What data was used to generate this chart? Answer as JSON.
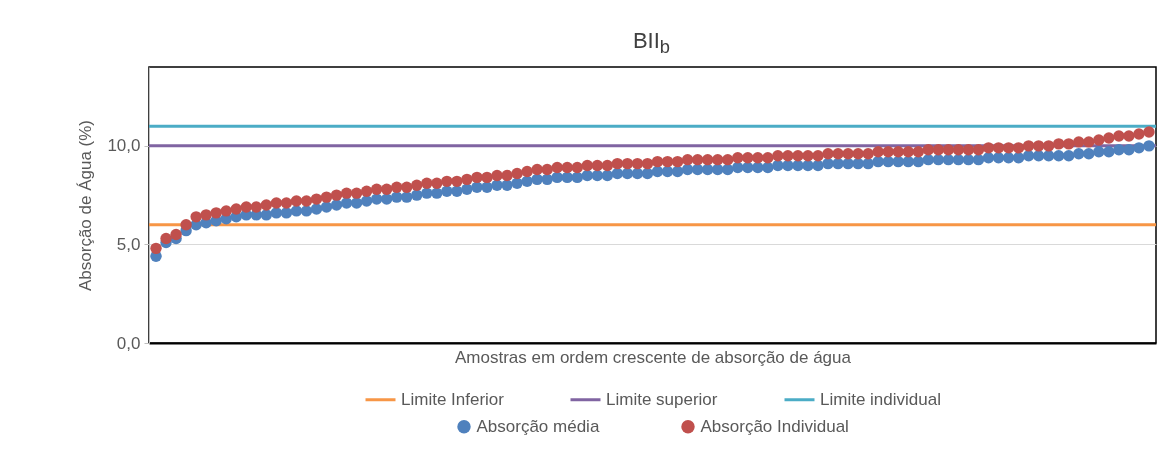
{
  "chart_data": {
    "type": "scatter",
    "title": "BII$_{b}$",
    "xlabel": "Amostras em ordem crescente de absorção de água",
    "ylabel": "Absorção de Água (%)",
    "categories": [
      null,
      null,
      null,
      null,
      null,
      null,
      null,
      null,
      null,
      null,
      null,
      null,
      null,
      null,
      null,
      null,
      null,
      null,
      null,
      null,
      null,
      null,
      null,
      null,
      null,
      null,
      null,
      null,
      null,
      null,
      null,
      null,
      null,
      null,
      null,
      null,
      null,
      null,
      null,
      null,
      null,
      null,
      null,
      null,
      null,
      null,
      null,
      null,
      null,
      null,
      null,
      null,
      null,
      null,
      null,
      null,
      null,
      null,
      null,
      null,
      null,
      null,
      null,
      null,
      null,
      null,
      null,
      null,
      null,
      null,
      null,
      null,
      null,
      null,
      null,
      null,
      null,
      null,
      null,
      null,
      null,
      null,
      null,
      null,
      null,
      null,
      null,
      null,
      null,
      null,
      null,
      null,
      null,
      null,
      null,
      null,
      null,
      null,
      null,
      null
    ],
    "series": [
      {
        "name": "Absorção média",
        "color": "#4f81bd",
        "values": [
          4.4,
          5.1,
          5.3,
          5.7,
          6.0,
          6.1,
          6.2,
          6.3,
          6.4,
          6.5,
          6.5,
          6.5,
          6.6,
          6.6,
          6.7,
          6.7,
          6.8,
          6.9,
          7.0,
          7.1,
          7.1,
          7.2,
          7.3,
          7.3,
          7.4,
          7.4,
          7.5,
          7.6,
          7.6,
          7.7,
          7.7,
          7.8,
          7.9,
          7.9,
          8.0,
          8.0,
          8.1,
          8.2,
          8.3,
          8.3,
          8.4,
          8.4,
          8.4,
          8.5,
          8.5,
          8.5,
          8.6,
          8.6,
          8.6,
          8.6,
          8.7,
          8.7,
          8.7,
          8.8,
          8.8,
          8.8,
          8.8,
          8.8,
          8.9,
          8.9,
          8.9,
          8.9,
          9.0,
          9.0,
          9.0,
          9.0,
          9.0,
          9.1,
          9.1,
          9.1,
          9.1,
          9.1,
          9.2,
          9.2,
          9.2,
          9.2,
          9.2,
          9.3,
          9.3,
          9.3,
          9.3,
          9.3,
          9.3,
          9.4,
          9.4,
          9.4,
          9.4,
          9.5,
          9.5,
          9.5,
          9.5,
          9.5,
          9.6,
          9.6,
          9.7,
          9.7,
          9.8,
          9.8,
          9.9,
          10.0
        ]
      },
      {
        "name": "Absorção Individual",
        "color": "#c0504d",
        "values": [
          4.8,
          5.3,
          5.5,
          6.0,
          6.4,
          6.5,
          6.6,
          6.7,
          6.8,
          6.9,
          6.9,
          7.0,
          7.1,
          7.1,
          7.2,
          7.2,
          7.3,
          7.4,
          7.5,
          7.6,
          7.6,
          7.7,
          7.8,
          7.8,
          7.9,
          7.9,
          8.0,
          8.1,
          8.1,
          8.2,
          8.2,
          8.3,
          8.4,
          8.4,
          8.5,
          8.5,
          8.6,
          8.7,
          8.8,
          8.8,
          8.9,
          8.9,
          8.9,
          9.0,
          9.0,
          9.0,
          9.1,
          9.1,
          9.1,
          9.1,
          9.2,
          9.2,
          9.2,
          9.3,
          9.3,
          9.3,
          9.3,
          9.3,
          9.4,
          9.4,
          9.4,
          9.4,
          9.5,
          9.5,
          9.5,
          9.5,
          9.5,
          9.6,
          9.6,
          9.6,
          9.6,
          9.6,
          9.7,
          9.7,
          9.7,
          9.7,
          9.7,
          9.8,
          9.8,
          9.8,
          9.8,
          9.8,
          9.8,
          9.9,
          9.9,
          9.9,
          9.9,
          10.0,
          10.0,
          10.0,
          10.1,
          10.1,
          10.2,
          10.2,
          10.3,
          10.4,
          10.5,
          10.5,
          10.6,
          10.7
        ]
      }
    ],
    "ref_lines": [
      {
        "axis": "y",
        "value": 6,
        "label": "Limite Inferior",
        "color": "#f79646"
      },
      {
        "axis": "y",
        "value": 10,
        "label": "Limite superior",
        "color": "#8064a2"
      },
      {
        "axis": "y",
        "value": 11,
        "label": "Limite individual",
        "color": "#4bacc6"
      }
    ],
    "ylim": [
      0,
      14
    ],
    "yticks": [
      {
        "value": 0,
        "label": "0,0"
      },
      {
        "value": 5,
        "label": "5,0"
      },
      {
        "value": 10,
        "label": "10,0"
      }
    ],
    "grid": "y",
    "legend": "bottom",
    "marker": "circle",
    "tick_labels": "y"
  }
}
